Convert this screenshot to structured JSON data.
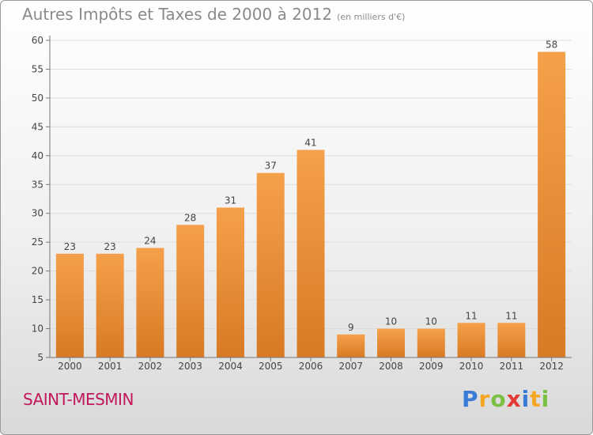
{
  "header": {
    "title": "Autres Impôts et Taxes de 2000 à 2012",
    "unit": "(en milliers d'€)"
  },
  "footer": {
    "city": "SAINT-MESMIN",
    "logo_letters": [
      "P",
      "r",
      "o",
      "x",
      "i",
      "t",
      "i"
    ],
    "logo_colors": [
      "#3a7bd5",
      "#f5a623",
      "#7bc043",
      "#e53935",
      "#3a7bd5",
      "#f5a623",
      "#7bc043"
    ]
  },
  "chart_data": {
    "type": "bar",
    "title": "Autres Impôts et Taxes de 2000 à 2012",
    "subtitle": "(en milliers d'€)",
    "categories": [
      "2000",
      "2001",
      "2002",
      "2003",
      "2004",
      "2005",
      "2006",
      "2007",
      "2008",
      "2009",
      "2010",
      "2011",
      "2012"
    ],
    "values": [
      23,
      23,
      24,
      28,
      31,
      37,
      41,
      9,
      10,
      10,
      11,
      11,
      58
    ],
    "value_labels": [
      "23",
      "23",
      "24",
      "28",
      "31",
      "37",
      "41",
      "9",
      "10",
      "10",
      "11",
      "11",
      "58"
    ],
    "yticks": [
      "5",
      "10",
      "15",
      "20",
      "25",
      "30",
      "35",
      "40",
      "45",
      "50",
      "55",
      "60"
    ],
    "ylim": [
      5,
      60
    ],
    "xlabel": "",
    "ylabel": "",
    "grid": true,
    "legend": "none",
    "bar_color": "#f5a04a",
    "bar_color_dark": "#d97a24"
  }
}
